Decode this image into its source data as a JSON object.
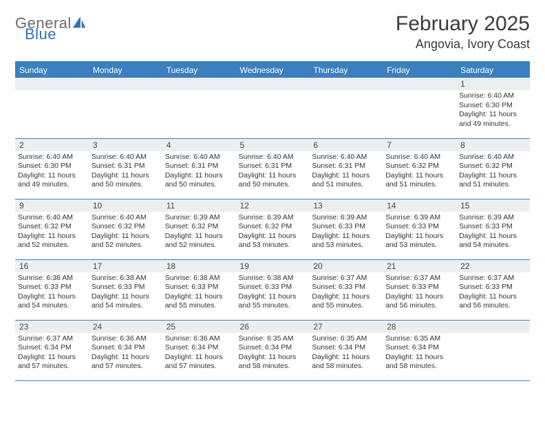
{
  "logo": {
    "word1": "General",
    "word2": "Blue",
    "word1_color": "#6a6a6a",
    "word2_color": "#2f73b6",
    "icon_color": "#2f73b6"
  },
  "title": "February 2025",
  "location": "Angovia, Ivory Coast",
  "colors": {
    "header_bg": "#3b7fbf",
    "daybar_bg": "#eceff1",
    "row_border": "#3b7fbf",
    "text": "#333333"
  },
  "daynames": [
    "Sunday",
    "Monday",
    "Tuesday",
    "Wednesday",
    "Thursday",
    "Friday",
    "Saturday"
  ],
  "layout": {
    "columns": 7,
    "rows": 5,
    "first_day_column_index": 6
  },
  "days": [
    {
      "n": 1,
      "sunrise": "6:40 AM",
      "sunset": "6:30 PM",
      "dl_h": 11,
      "dl_m": 49
    },
    {
      "n": 2,
      "sunrise": "6:40 AM",
      "sunset": "6:30 PM",
      "dl_h": 11,
      "dl_m": 49
    },
    {
      "n": 3,
      "sunrise": "6:40 AM",
      "sunset": "6:31 PM",
      "dl_h": 11,
      "dl_m": 50
    },
    {
      "n": 4,
      "sunrise": "6:40 AM",
      "sunset": "6:31 PM",
      "dl_h": 11,
      "dl_m": 50
    },
    {
      "n": 5,
      "sunrise": "6:40 AM",
      "sunset": "6:31 PM",
      "dl_h": 11,
      "dl_m": 50
    },
    {
      "n": 6,
      "sunrise": "6:40 AM",
      "sunset": "6:31 PM",
      "dl_h": 11,
      "dl_m": 51
    },
    {
      "n": 7,
      "sunrise": "6:40 AM",
      "sunset": "6:32 PM",
      "dl_h": 11,
      "dl_m": 51
    },
    {
      "n": 8,
      "sunrise": "6:40 AM",
      "sunset": "6:32 PM",
      "dl_h": 11,
      "dl_m": 51
    },
    {
      "n": 9,
      "sunrise": "6:40 AM",
      "sunset": "6:32 PM",
      "dl_h": 11,
      "dl_m": 52
    },
    {
      "n": 10,
      "sunrise": "6:40 AM",
      "sunset": "6:32 PM",
      "dl_h": 11,
      "dl_m": 52
    },
    {
      "n": 11,
      "sunrise": "6:39 AM",
      "sunset": "6:32 PM",
      "dl_h": 11,
      "dl_m": 52
    },
    {
      "n": 12,
      "sunrise": "6:39 AM",
      "sunset": "6:32 PM",
      "dl_h": 11,
      "dl_m": 53
    },
    {
      "n": 13,
      "sunrise": "6:39 AM",
      "sunset": "6:33 PM",
      "dl_h": 11,
      "dl_m": 53
    },
    {
      "n": 14,
      "sunrise": "6:39 AM",
      "sunset": "6:33 PM",
      "dl_h": 11,
      "dl_m": 53
    },
    {
      "n": 15,
      "sunrise": "6:39 AM",
      "sunset": "6:33 PM",
      "dl_h": 11,
      "dl_m": 54
    },
    {
      "n": 16,
      "sunrise": "6:38 AM",
      "sunset": "6:33 PM",
      "dl_h": 11,
      "dl_m": 54
    },
    {
      "n": 17,
      "sunrise": "6:38 AM",
      "sunset": "6:33 PM",
      "dl_h": 11,
      "dl_m": 54
    },
    {
      "n": 18,
      "sunrise": "6:38 AM",
      "sunset": "6:33 PM",
      "dl_h": 11,
      "dl_m": 55
    },
    {
      "n": 19,
      "sunrise": "6:38 AM",
      "sunset": "6:33 PM",
      "dl_h": 11,
      "dl_m": 55
    },
    {
      "n": 20,
      "sunrise": "6:37 AM",
      "sunset": "6:33 PM",
      "dl_h": 11,
      "dl_m": 55
    },
    {
      "n": 21,
      "sunrise": "6:37 AM",
      "sunset": "6:33 PM",
      "dl_h": 11,
      "dl_m": 56
    },
    {
      "n": 22,
      "sunrise": "6:37 AM",
      "sunset": "6:33 PM",
      "dl_h": 11,
      "dl_m": 56
    },
    {
      "n": 23,
      "sunrise": "6:37 AM",
      "sunset": "6:34 PM",
      "dl_h": 11,
      "dl_m": 57
    },
    {
      "n": 24,
      "sunrise": "6:36 AM",
      "sunset": "6:34 PM",
      "dl_h": 11,
      "dl_m": 57
    },
    {
      "n": 25,
      "sunrise": "6:36 AM",
      "sunset": "6:34 PM",
      "dl_h": 11,
      "dl_m": 57
    },
    {
      "n": 26,
      "sunrise": "6:35 AM",
      "sunset": "6:34 PM",
      "dl_h": 11,
      "dl_m": 58
    },
    {
      "n": 27,
      "sunrise": "6:35 AM",
      "sunset": "6:34 PM",
      "dl_h": 11,
      "dl_m": 58
    },
    {
      "n": 28,
      "sunrise": "6:35 AM",
      "sunset": "6:34 PM",
      "dl_h": 11,
      "dl_m": 58
    }
  ],
  "labels": {
    "sunrise": "Sunrise:",
    "sunset": "Sunset:",
    "daylight_prefix": "Daylight:",
    "hours_word": "hours",
    "and_word": "and",
    "minutes_word": "minutes."
  }
}
